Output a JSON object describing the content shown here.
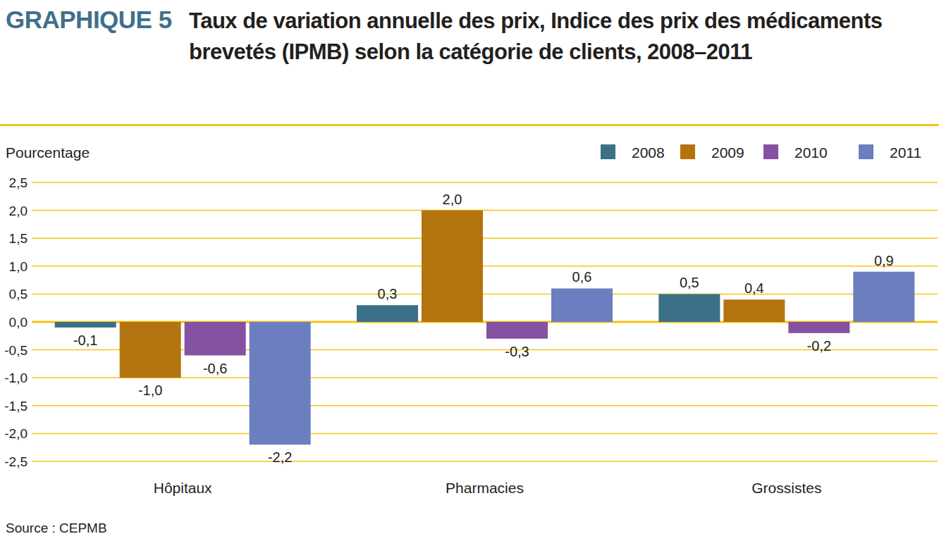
{
  "chart_data": {
    "type": "bar",
    "figure_number": "GRAPHIQUE 5",
    "title": "Taux de variation annuelle des prix, Indice des prix des médicaments brevetés (IPMB) selon la catégorie de clients, 2008–2011",
    "ylabel": "Pourcentage",
    "source": "Source : CEPMB",
    "categories": [
      "Hôpitaux",
      "Pharmacies",
      "Grossistes"
    ],
    "series": [
      {
        "name": "2008",
        "color": "#3c7088",
        "values": [
          -0.1,
          0.3,
          0.5
        ],
        "value_labels": [
          "-0,1",
          "0,3",
          "0,5"
        ]
      },
      {
        "name": "2009",
        "color": "#b3730f",
        "values": [
          -1.0,
          2.0,
          0.4
        ],
        "value_labels": [
          "-1,0",
          "2,0",
          "0,4"
        ]
      },
      {
        "name": "2010",
        "color": "#8551a1",
        "values": [
          -0.6,
          -0.3,
          -0.2
        ],
        "value_labels": [
          "-0,6",
          "-0,3",
          "-0,2"
        ]
      },
      {
        "name": "2011",
        "color": "#6a7ec0",
        "values": [
          -2.2,
          0.6,
          0.9
        ],
        "value_labels": [
          "-2,2",
          "0,6",
          "0,9"
        ]
      }
    ],
    "ylim": [
      -2.5,
      2.5
    ],
    "yticks": [
      {
        "value": -2.5,
        "label": "-2,5"
      },
      {
        "value": -2.0,
        "label": "-2,0"
      },
      {
        "value": -1.5,
        "label": "-1,5"
      },
      {
        "value": -1.0,
        "label": "-1,0"
      },
      {
        "value": -0.5,
        "label": "-0,5"
      },
      {
        "value": 0,
        "label": "0,0"
      },
      {
        "value": 0.5,
        "label": "0,5"
      },
      {
        "value": 1.0,
        "label": "1,0"
      },
      {
        "value": 1.5,
        "label": "1,5"
      },
      {
        "value": 2.0,
        "label": "2,0"
      },
      {
        "value": 2.5,
        "label": "2,5"
      }
    ],
    "grid": true,
    "legend": "top-right",
    "data_labels": true
  }
}
